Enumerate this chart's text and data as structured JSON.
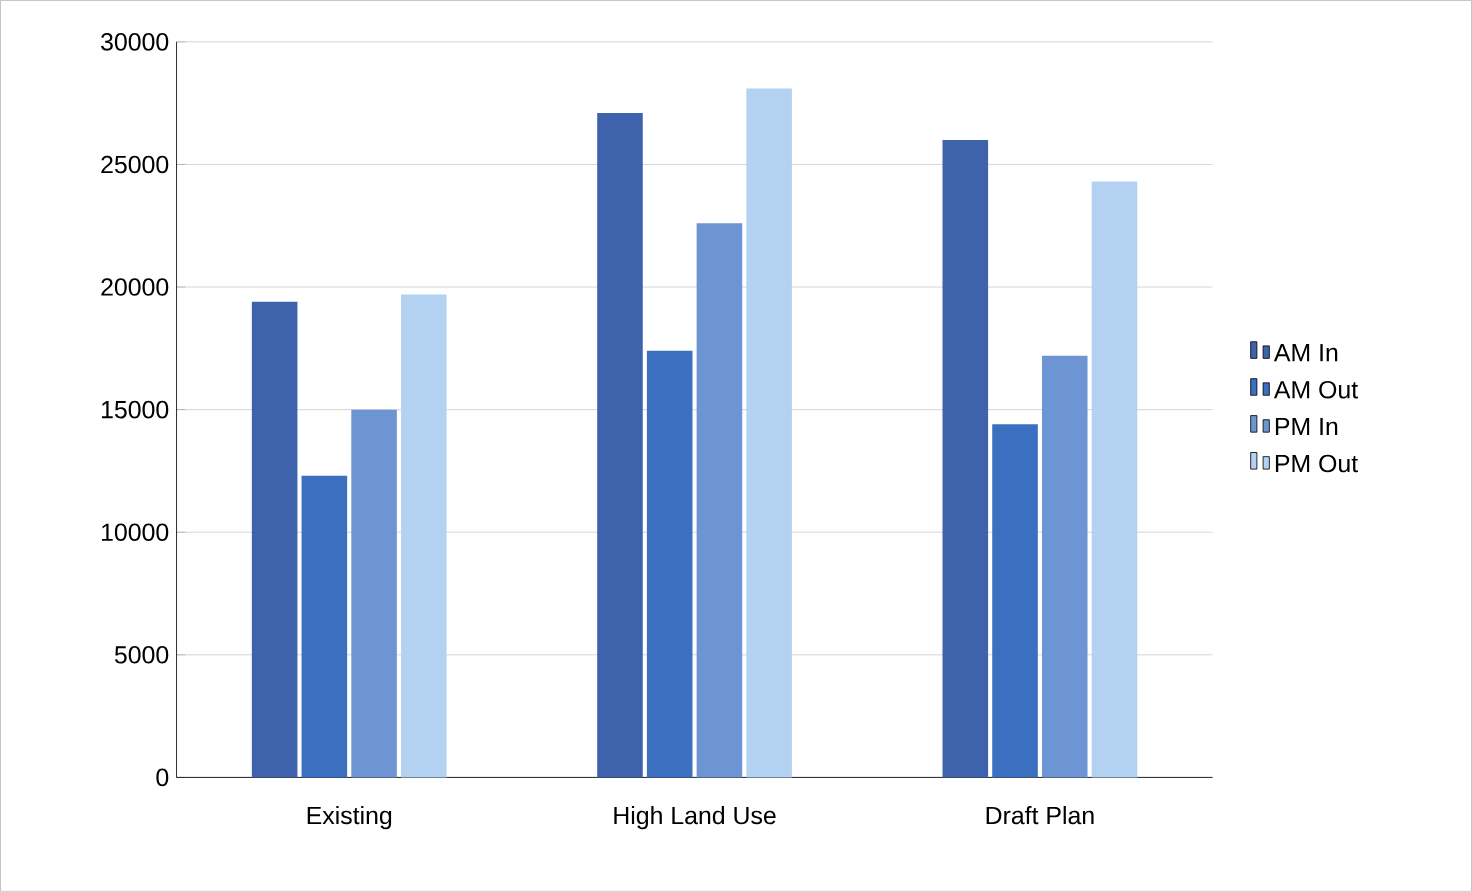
{
  "chart_data": {
    "type": "bar",
    "categories": [
      "Existing",
      "High Land Use",
      "Draft Plan"
    ],
    "series": [
      {
        "name": "AM In",
        "color": "#3f62ad",
        "values": [
          19400,
          27100,
          26000
        ]
      },
      {
        "name": "AM Out",
        "color": "#3b6fc0",
        "values": [
          12300,
          17400,
          14400
        ]
      },
      {
        "name": "PM In",
        "color": "#6d95d3",
        "values": [
          15000,
          22600,
          17200
        ]
      },
      {
        "name": "PM Out",
        "color": "#b3d2f2",
        "values": [
          19700,
          28100,
          24300
        ]
      }
    ],
    "ylim": [
      0,
      30000
    ],
    "yticks": [
      0,
      5000,
      10000,
      15000,
      20000,
      25000,
      30000
    ],
    "grid": "y",
    "legend": "right"
  }
}
